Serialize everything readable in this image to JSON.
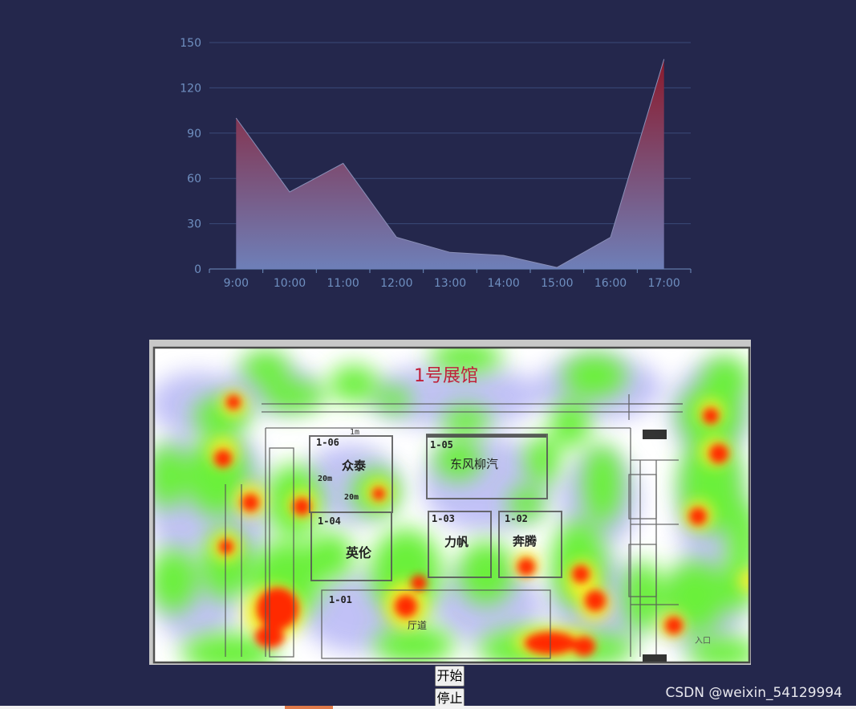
{
  "chart_data": {
    "type": "area",
    "categories": [
      "9:00",
      "10:00",
      "11:00",
      "12:00",
      "13:00",
      "14:00",
      "15:00",
      "16:00",
      "17:00"
    ],
    "series": [
      {
        "values": [
          100,
          51,
          70,
          21,
          11,
          9,
          1,
          21,
          139
        ]
      }
    ],
    "ylim": [
      0,
      150
    ],
    "yticks": [
      0,
      30,
      60,
      90,
      120,
      150
    ],
    "grid": true,
    "colors": {
      "top": "#8b1a2c",
      "bottom": "#6e7fb8",
      "grid": "#3a4a78",
      "axis": "#6f8fc0",
      "line": "#8a90b8"
    }
  },
  "floorplan": {
    "title": "1号展馆",
    "booths": [
      {
        "code": "1-06",
        "name": "众泰"
      },
      {
        "code": "1-05",
        "name": "东风柳汽"
      },
      {
        "code": "1-04",
        "name": "英伦"
      },
      {
        "code": "1-03",
        "name": "力帆"
      },
      {
        "code": "1-02",
        "name": "奔腾"
      },
      {
        "code": "1-01",
        "name": ""
      }
    ],
    "scale_1m": "1m",
    "dim_20m_a": "20m",
    "dim_20m_b": "20m",
    "hall_label": "厅道",
    "entrance_label": "入口"
  },
  "controls": {
    "start_label": "开始",
    "stop_label": "停止"
  },
  "watermark": "CSDN @weixin_54129994"
}
